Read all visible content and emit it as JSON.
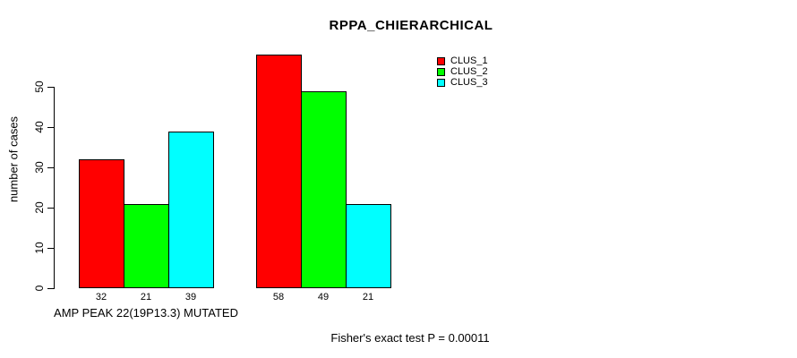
{
  "page": {
    "background": "#ffffff",
    "text_color": "#000000",
    "axis_color": "#000000"
  },
  "chart_data": {
    "type": "bar",
    "title": "RPPA_CHIERARCHICAL",
    "ylabel": "number of cases",
    "xlabel": "",
    "categories": [
      "AMP PEAK 22(19P13.3) MUTATED",
      ""
    ],
    "series": [
      {
        "name": "CLUS_1",
        "color": "#ff0000",
        "values": [
          32,
          58
        ]
      },
      {
        "name": "CLUS_2",
        "color": "#00ff00",
        "values": [
          21,
          49
        ]
      },
      {
        "name": "CLUS_3",
        "color": "#00ffff",
        "values": [
          39,
          21
        ]
      }
    ],
    "bar_value_labels": [
      [
        32,
        21,
        39
      ],
      [
        58,
        49,
        21
      ]
    ],
    "yticks": [
      0,
      10,
      20,
      30,
      40,
      50
    ],
    "ylim": [
      0,
      58
    ],
    "grid": false,
    "legend": {
      "position": "top-right",
      "entries": [
        {
          "label": "CLUS_1",
          "color": "#ff0000"
        },
        {
          "label": "CLUS_2",
          "color": "#00ff00"
        },
        {
          "label": "CLUS_3",
          "color": "#00ffff"
        }
      ]
    },
    "footer_note": "Fisher's exact test P = 0.00011"
  }
}
